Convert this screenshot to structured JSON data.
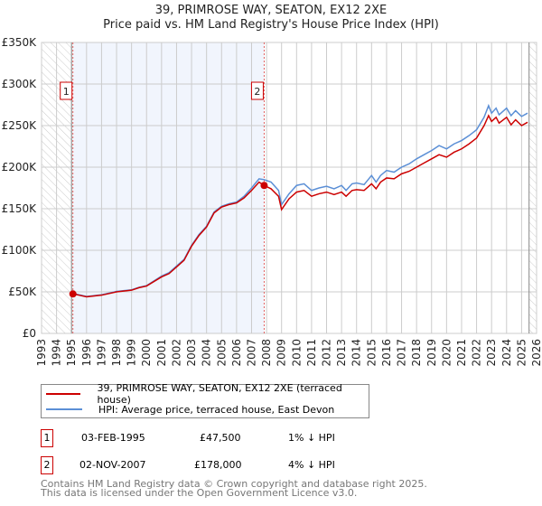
{
  "chart_data": {
    "type": "line",
    "title": "39, PRIMROSE WAY, SEATON, EX12 2XE",
    "subtitle": "Price paid vs. HM Land Registry's House Price Index (HPI)",
    "xlim": [
      1993,
      2026
    ],
    "ylim": [
      0,
      350000
    ],
    "x_ticks": [
      "1993",
      "1994",
      "1995",
      "1996",
      "1997",
      "1998",
      "1999",
      "2000",
      "2001",
      "2002",
      "2003",
      "2004",
      "2005",
      "2006",
      "2007",
      "2008",
      "2009",
      "2010",
      "2011",
      "2012",
      "2013",
      "2014",
      "2015",
      "2016",
      "2017",
      "2018",
      "2019",
      "2020",
      "2021",
      "2022",
      "2023",
      "2024",
      "2025",
      "2026"
    ],
    "y_ticks": [
      {
        "v": 0,
        "label": "£0"
      },
      {
        "v": 50000,
        "label": "£50K"
      },
      {
        "v": 100000,
        "label": "£100K"
      },
      {
        "v": 150000,
        "label": "£150K"
      },
      {
        "v": 200000,
        "label": "£200K"
      },
      {
        "v": 250000,
        "label": "£250K"
      },
      {
        "v": 300000,
        "label": "£300K"
      },
      {
        "v": 350000,
        "label": "£350K"
      }
    ],
    "grid": true,
    "series": [
      {
        "name": "39, PRIMROSE WAY, SEATON, EX12 2XE (terraced house)",
        "color": "#cc0000",
        "x": [
          1995.1,
          1995.5,
          1996,
          1997,
          1998,
          1999,
          1999.5,
          2000,
          2001,
          2001.5,
          2002,
          2002.5,
          2003,
          2003.5,
          2004,
          2004.5,
          2005,
          2005.5,
          2006,
          2006.5,
          2007,
          2007.5,
          2007.84,
          2008.3,
          2008.8,
          2009,
          2009.5,
          2010,
          2010.5,
          2011,
          2011.5,
          2012,
          2012.5,
          2013,
          2013.3,
          2013.7,
          2014,
          2014.5,
          2015,
          2015.3,
          2015.6,
          2016,
          2016.5,
          2017,
          2017.5,
          2018,
          2018.5,
          2019,
          2019.5,
          2020,
          2020.5,
          2021,
          2021.5,
          2022,
          2022.5,
          2022.8,
          2023,
          2023.3,
          2023.5,
          2024,
          2024.3,
          2024.6,
          2025,
          2025.4
        ],
        "y": [
          47500,
          46000,
          44000,
          46000,
          50000,
          52000,
          55000,
          57000,
          68000,
          72000,
          80000,
          88000,
          105000,
          118000,
          128000,
          145000,
          152000,
          155000,
          157000,
          163000,
          172000,
          182000,
          178000,
          174000,
          165000,
          149000,
          162000,
          170000,
          172000,
          165000,
          168000,
          170000,
          167000,
          170000,
          165000,
          172000,
          173000,
          172000,
          180000,
          174000,
          182000,
          187000,
          186000,
          192000,
          195000,
          200000,
          205000,
          210000,
          215000,
          212000,
          218000,
          222000,
          228000,
          235000,
          250000,
          262000,
          255000,
          260000,
          253000,
          260000,
          251000,
          257000,
          250000,
          254000
        ]
      },
      {
        "name": "HPI: Average price, terraced house, East Devon",
        "color": "#5b8fd6",
        "x": [
          1995.1,
          1995.5,
          1996,
          1997,
          1998,
          1999,
          1999.5,
          2000,
          2001,
          2001.5,
          2002,
          2002.5,
          2003,
          2003.5,
          2004,
          2004.5,
          2005,
          2005.5,
          2006,
          2006.5,
          2007,
          2007.5,
          2007.84,
          2008.3,
          2008.8,
          2009,
          2009.5,
          2010,
          2010.5,
          2011,
          2011.5,
          2012,
          2012.5,
          2013,
          2013.3,
          2013.7,
          2014,
          2014.5,
          2015,
          2015.3,
          2015.6,
          2016,
          2016.5,
          2017,
          2017.5,
          2018,
          2018.5,
          2019,
          2019.5,
          2020,
          2020.5,
          2021,
          2021.5,
          2022,
          2022.5,
          2022.8,
          2023,
          2023.3,
          2023.5,
          2024,
          2024.3,
          2024.6,
          2025,
          2025.4
        ],
        "y": [
          48000,
          46500,
          44500,
          46500,
          50500,
          52500,
          55500,
          57500,
          69000,
          73000,
          81000,
          89000,
          106000,
          119000,
          129000,
          146000,
          153000,
          156000,
          158000,
          165000,
          175000,
          186000,
          185000,
          182000,
          172000,
          155000,
          168000,
          178000,
          180000,
          172000,
          175000,
          177000,
          174000,
          178000,
          172000,
          180000,
          181000,
          179000,
          190000,
          182000,
          190000,
          196000,
          194000,
          200000,
          204000,
          210000,
          215000,
          220000,
          226000,
          222000,
          228000,
          232000,
          238000,
          245000,
          260000,
          274000,
          265000,
          271000,
          263000,
          271000,
          262000,
          268000,
          261000,
          265000
        ]
      }
    ],
    "sales": [
      {
        "n": "1",
        "x": 1995.09,
        "y": 47500,
        "date": "03-FEB-1995",
        "price": "£47,500",
        "hpi": "1% ↓ HPI"
      },
      {
        "n": "2",
        "x": 2007.84,
        "y": 178000,
        "date": "02-NOV-2007",
        "price": "£178,000",
        "hpi": "4% ↓ HPI"
      }
    ],
    "shade": [
      1995.09,
      2007.84
    ],
    "hatch_before": 1995,
    "hatch_after": 2025.5
  },
  "footer": [
    "Contains HM Land Registry data © Crown copyright and database right 2025.",
    "This data is licensed under the Open Government Licence v3.0."
  ]
}
